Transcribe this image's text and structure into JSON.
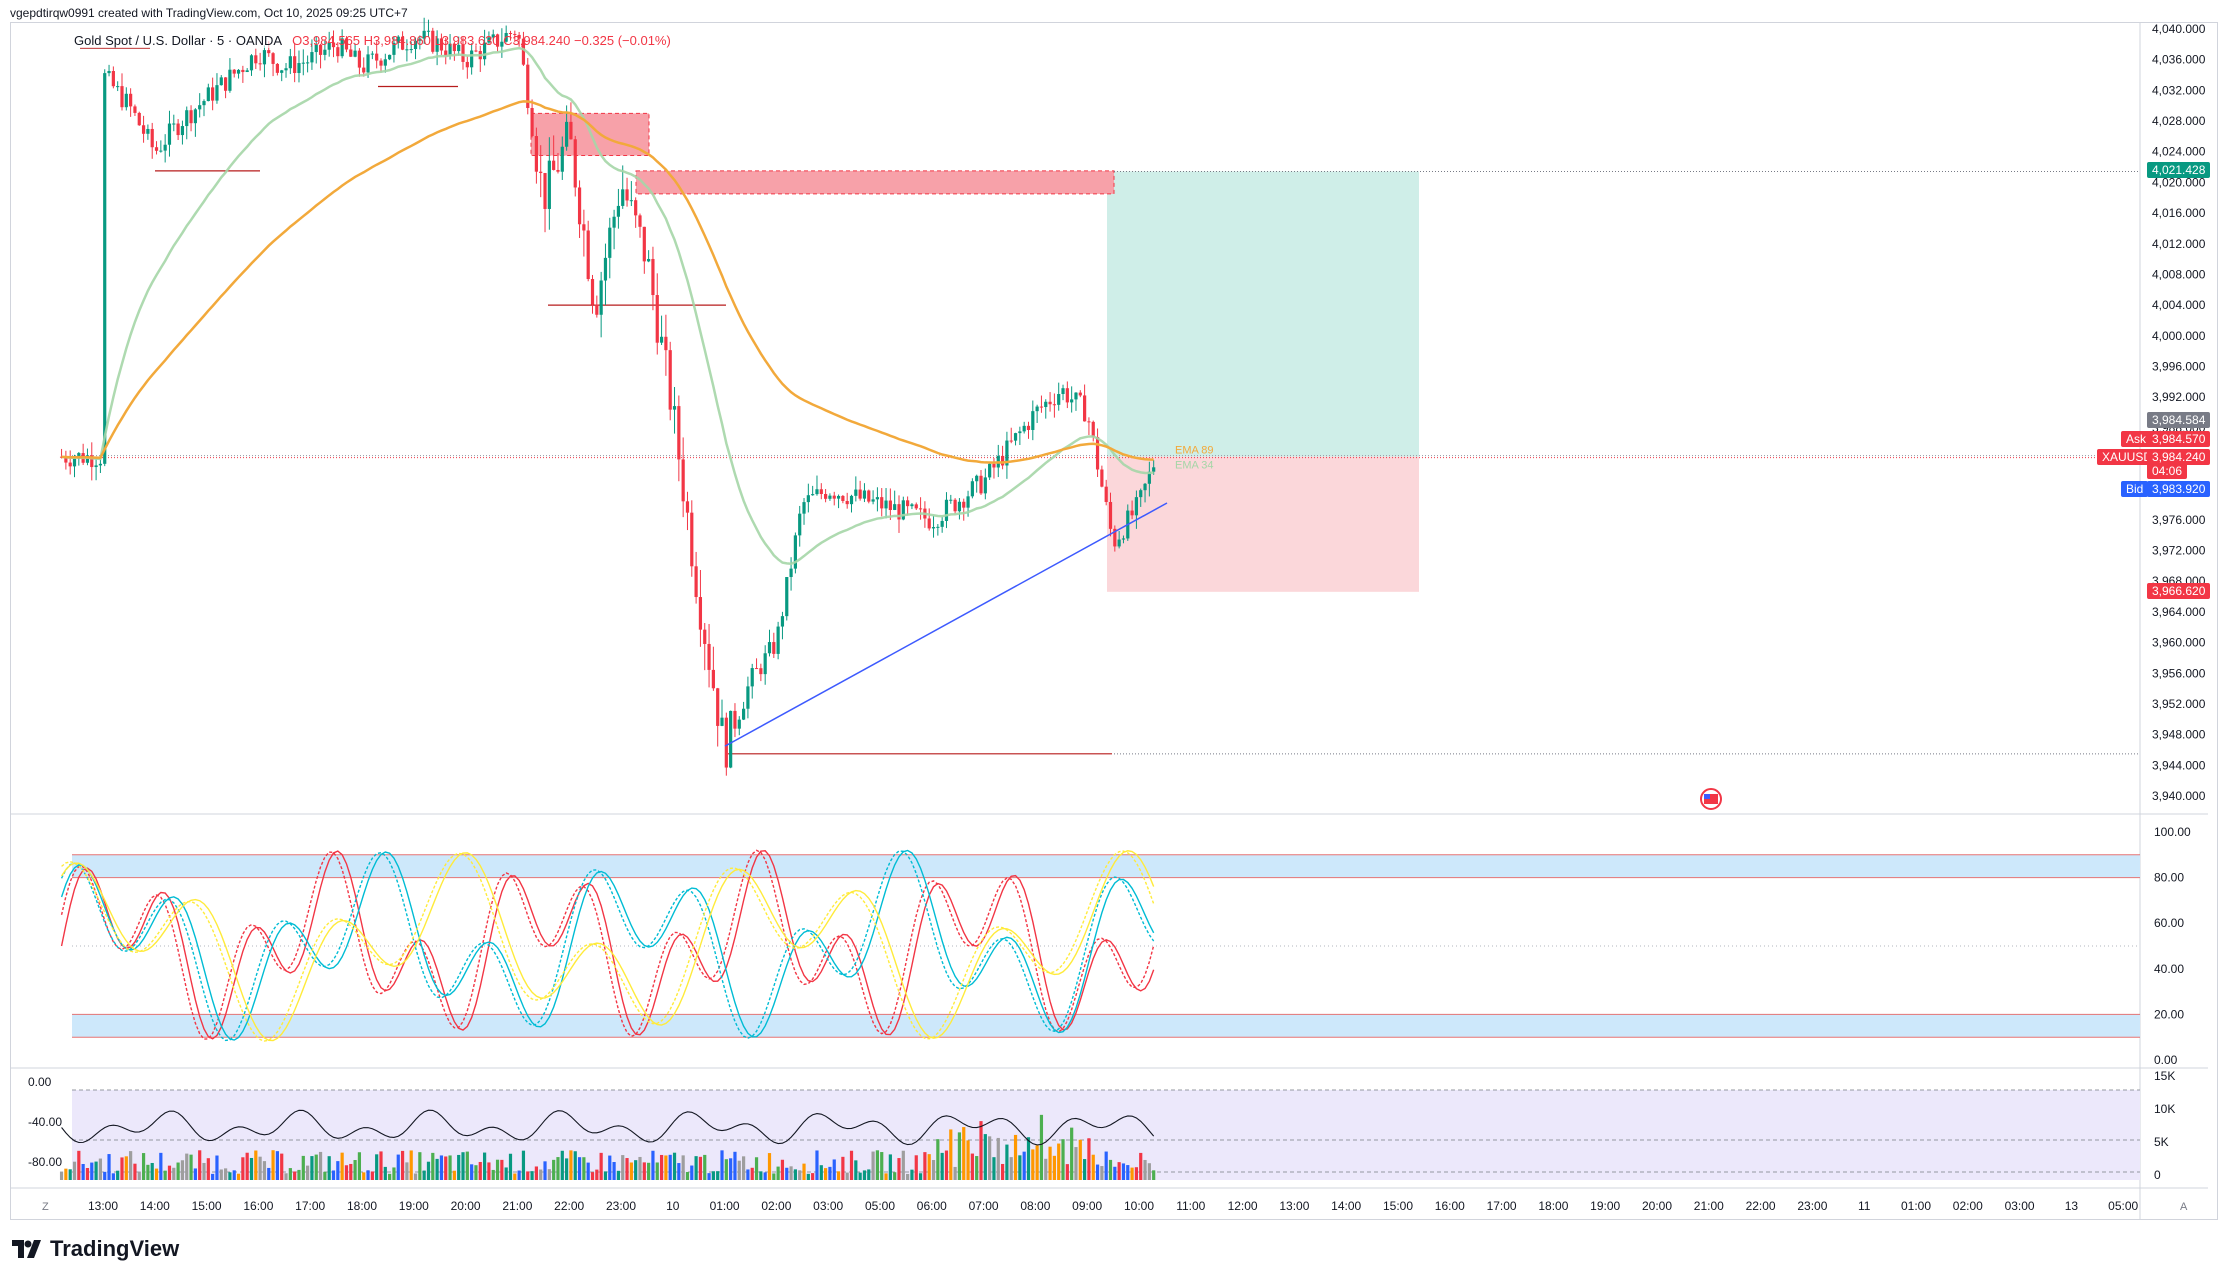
{
  "header": {
    "credit": "vgepdtirqw0991 created with TradingView.com, Oct 10, 2025 09:25 UTC+7",
    "symbol": "Gold Spot / U.S. Dollar · 5 · OANDA",
    "ohlc": "O3,984.565 H3,984.860 L3,983.630 C3,984.240 −0.325 (−0.01%)"
  },
  "colors": {
    "up": "#089981",
    "down": "#f23645",
    "ema89": "#f2a93b",
    "ema34": "#a5d6a7",
    "trend": "#3d5afe",
    "profit": "#cfeee8",
    "loss": "#fbd7da",
    "zone": "#f7a1a9",
    "band": "#cde8fb",
    "stoch1": "#f23645",
    "stoch2": "#00bcd4",
    "stoch3": "#ffeb3b"
  },
  "price_axis": {
    "ticks": [
      "4,040.000",
      "4,036.000",
      "4,032.000",
      "4,028.000",
      "4,024.000",
      "4,020.000",
      "4,016.000",
      "4,012.000",
      "4,008.000",
      "4,004.000",
      "4,000.000",
      "3,996.000",
      "3,992.000",
      "3,988.000",
      "3,984.000",
      "3,980.000",
      "3,976.000",
      "3,972.000",
      "3,968.000",
      "3,964.000",
      "3,960.000",
      "3,956.000",
      "3,952.000",
      "3,948.000",
      "3,944.000",
      "3,940.000"
    ],
    "tags": {
      "target": "4,021.428",
      "ask_label": "Ask",
      "ask": "3,984.570",
      "last_label": "XAUUSD",
      "last": "3,984.240",
      "countdown": "04:06",
      "bid_label": "Bid",
      "bid": "3,983.920",
      "high_tag": "3,984.584",
      "stop": "3,966.620"
    }
  },
  "time_axis": [
    "13:00",
    "14:00",
    "15:00",
    "16:00",
    "17:00",
    "18:00",
    "19:00",
    "20:00",
    "21:00",
    "22:00",
    "23:00",
    "10",
    "01:00",
    "02:00",
    "03:00",
    "05:00",
    "06:00",
    "07:00",
    "08:00",
    "09:00",
    "10:00",
    "11:00",
    "12:00",
    "13:00",
    "14:00",
    "15:00",
    "16:00",
    "17:00",
    "18:00",
    "19:00",
    "20:00",
    "21:00",
    "22:00",
    "23:00",
    "11",
    "01:00",
    "02:00",
    "03:00",
    "13",
    "05:00"
  ],
  "ema_labels": {
    "ema89": "EMA 89",
    "ema34": "EMA 34"
  },
  "stoch_axis": [
    "100.00",
    "80.00",
    "60.00",
    "40.00",
    "20.00",
    "0.00"
  ],
  "osc_left_axis": [
    "0.00",
    "-40.00",
    "-80.00"
  ],
  "osc_right_axis": [
    "15K",
    "10K",
    "5K",
    "0"
  ],
  "footer": {
    "brand": "TradingView",
    "corner_left": "Z",
    "corner_right": "A"
  },
  "chart_data": {
    "type": "line",
    "title": "Gold Spot / U.S. Dollar · 5 · OANDA",
    "ylim": [
      3938,
      4041
    ],
    "price_path": [
      [
        "13:00",
        4034
      ],
      [
        "13:30",
        4030
      ],
      [
        "14:00",
        4024
      ],
      [
        "14:30",
        4028
      ],
      [
        "15:00",
        4031
      ],
      [
        "15:30",
        4034
      ],
      [
        "16:00",
        4037
      ],
      [
        "16:30",
        4035
      ],
      [
        "17:00",
        4036
      ],
      [
        "17:30",
        4038
      ],
      [
        "18:00",
        4035
      ],
      [
        "18:30",
        4037
      ],
      [
        "19:00",
        4039
      ],
      [
        "19:30",
        4038
      ],
      [
        "20:00",
        4036
      ],
      [
        "20:30",
        4038
      ],
      [
        "21:00",
        4040
      ],
      [
        "21:30",
        4018
      ],
      [
        "22:00",
        4026
      ],
      [
        "22:30",
        4004
      ],
      [
        "23:00",
        4020
      ],
      [
        "23:30",
        4010
      ],
      [
        "00:00",
        3990
      ],
      [
        "00:30",
        3966
      ],
      [
        "01:00",
        3946
      ],
      [
        "01:30",
        3955
      ],
      [
        "02:00",
        3960
      ],
      [
        "02:30",
        3978
      ],
      [
        "03:00",
        3980
      ],
      [
        "04:00",
        3978
      ],
      [
        "05:00",
        3976
      ],
      [
        "06:00",
        3981
      ],
      [
        "07:00",
        3990
      ],
      [
        "07:30",
        3993
      ],
      [
        "08:00",
        3990
      ],
      [
        "08:30",
        3973
      ],
      [
        "09:00",
        3978
      ],
      [
        "09:20",
        3984.24
      ]
    ],
    "levels": {
      "target": 4021.428,
      "entry": 3984.24,
      "stop": 3966.62,
      "low_line": 3945.5
    }
  }
}
